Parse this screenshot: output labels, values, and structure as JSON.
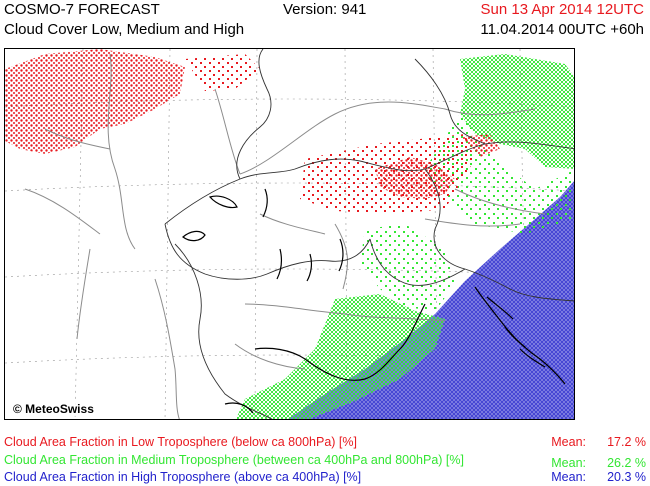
{
  "header": {
    "title_line1": "COSMO-7 FORECAST",
    "title_line2": "Cloud Cover Low, Medium and High",
    "version": "Version: 941",
    "valid_time": "Sun 13 Apr 2014 12UTC",
    "run_time": "11.04.2014 00UTC +60h"
  },
  "map": {
    "copyright": "© MeteoSwiss"
  },
  "legend": {
    "low_label": "Cloud Area Fraction in Low Troposphere (below ca 800hPa) [%]",
    "medium_label": "Cloud Area Fraction in Medium Troposphere (between ca 400hPa and 800hPa) [%]",
    "high_label": "Cloud Area Fraction in High Troposphere (above ca 400hPa) [%]"
  },
  "means": {
    "mean_label": "Mean:",
    "low": "17.2 %",
    "medium": "26.2 %",
    "high": "20.3 %"
  },
  "colors": {
    "low": "#e8191f",
    "medium": "#33e633",
    "high": "#2222cc",
    "border": "#333333",
    "river": "#888888",
    "coast": "#000000"
  }
}
